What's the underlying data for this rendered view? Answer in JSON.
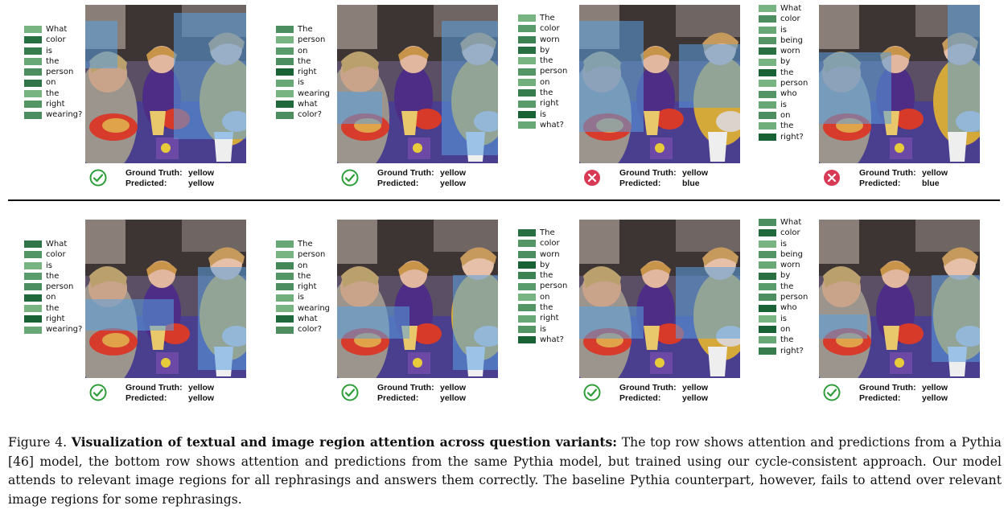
{
  "labels": {
    "ground_truth": "Ground Truth:",
    "predicted": "Predicted:"
  },
  "rows": [
    {
      "name": "pythia-baseline",
      "panels": [
        {
          "question": [
            "What",
            "color",
            "is",
            "the",
            "person",
            "on",
            "the",
            "right",
            "wearing?"
          ],
          "attention": [
            0.3,
            0.85,
            0.75,
            0.4,
            0.6,
            0.8,
            0.3,
            0.55,
            0.6
          ],
          "ground_truth": "yellow",
          "predicted": "yellow",
          "correct": true
        },
        {
          "question": [
            "The",
            "person",
            "on",
            "the",
            "right",
            "is",
            "wearing",
            "what",
            "color?"
          ],
          "attention": [
            0.6,
            0.3,
            0.5,
            0.6,
            0.95,
            0.4,
            0.3,
            0.9,
            0.6
          ],
          "ground_truth": "yellow",
          "predicted": "yellow",
          "correct": true
        },
        {
          "question": [
            "The",
            "color",
            "worn",
            "by",
            "the",
            "person",
            "on",
            "the",
            "right",
            "is",
            "what?"
          ],
          "attention": [
            0.3,
            0.5,
            0.7,
            0.85,
            0.3,
            0.55,
            0.35,
            0.75,
            0.5,
            0.95,
            0.4
          ],
          "ground_truth": "yellow",
          "predicted": "blue",
          "correct": false
        },
        {
          "question": [
            "What",
            "color",
            "is",
            "being",
            "worn",
            "by",
            "the",
            "person",
            "who",
            "is",
            "on",
            "the",
            "right?"
          ],
          "attention": [
            0.3,
            0.6,
            0.4,
            0.55,
            0.85,
            0.3,
            0.95,
            0.3,
            0.55,
            0.4,
            0.6,
            0.35,
            0.95
          ],
          "ground_truth": "yellow",
          "predicted": "blue",
          "correct": false
        }
      ]
    },
    {
      "name": "pythia-cycle-consistent",
      "panels": [
        {
          "question": [
            "What",
            "color",
            "is",
            "the",
            "person",
            "on",
            "the",
            "right",
            "wearing?"
          ],
          "attention": [
            0.8,
            0.55,
            0.3,
            0.5,
            0.6,
            0.9,
            0.3,
            0.95,
            0.4
          ],
          "ground_truth": "yellow",
          "predicted": "yellow",
          "correct": true
        },
        {
          "question": [
            "The",
            "person",
            "on",
            "the",
            "right",
            "is",
            "wearing",
            "what",
            "color?"
          ],
          "attention": [
            0.4,
            0.3,
            0.65,
            0.55,
            0.6,
            0.35,
            0.3,
            0.9,
            0.6
          ],
          "ground_truth": "yellow",
          "predicted": "yellow",
          "correct": true
        },
        {
          "question": [
            "The",
            "color",
            "worn",
            "by",
            "the",
            "person",
            "on",
            "the",
            "right",
            "is",
            "what?"
          ],
          "attention": [
            0.85,
            0.55,
            0.6,
            0.95,
            0.7,
            0.5,
            0.3,
            0.55,
            0.4,
            0.55,
            0.95
          ],
          "ground_truth": "yellow",
          "predicted": "yellow",
          "correct": true
        },
        {
          "question": [
            "What",
            "color",
            "is",
            "being",
            "worn",
            "by",
            "the",
            "person",
            "who",
            "is",
            "on",
            "the",
            "right?"
          ],
          "attention": [
            0.6,
            0.9,
            0.3,
            0.55,
            0.4,
            0.85,
            0.5,
            0.6,
            0.95,
            0.3,
            0.95,
            0.4,
            0.75
          ],
          "ground_truth": "yellow",
          "predicted": "yellow",
          "correct": true
        }
      ]
    }
  ],
  "caption": {
    "prefix": "Figure 4.",
    "title": "Visualization of textual and image region attention across question variants:",
    "body": "The top row shows attention and predictions from a Pythia [46] model, the bottom row shows attention and predictions from the same Pythia model, but trained using our cycle-consistent approach. Our model attends to relevant image regions for all rephrasings and answers them correctly. The baseline Pythia counterpart, however, fails to attend over relevant image regions for some rephrasings."
  }
}
